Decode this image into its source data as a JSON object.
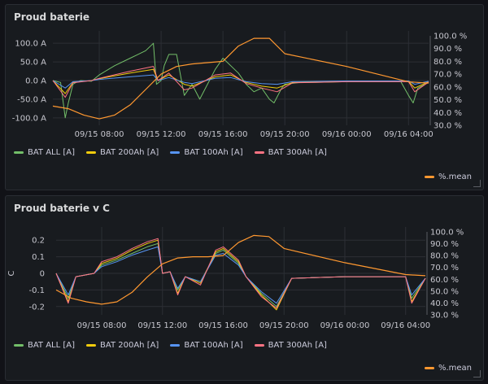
{
  "colors": {
    "bat_all": "#73bf69",
    "bat_200": "#f2cc0c",
    "bat_100": "#5794f2",
    "bat_300": "#ff7383",
    "mean": "#ff9830",
    "grid": "#2c2f35"
  },
  "panels": [
    {
      "title": "Proud baterie",
      "ylabel": "",
      "legend": [
        "BAT ALL [A]",
        "BAT 200Ah [A]",
        "BAT 100Ah [A]",
        "BAT 300Ah [A]"
      ],
      "mean_label": "%.mean"
    },
    {
      "title": "Proud baterie v C",
      "ylabel": "C",
      "legend": [
        "BAT ALL [A]",
        "BAT 200Ah [A]",
        "BAT 100Ah [A]",
        "BAT 300Ah [A]"
      ],
      "mean_label": "%.mean"
    }
  ],
  "chart_data": [
    {
      "type": "line",
      "title": "Proud baterie",
      "x_ticks": [
        "09/15 08:00",
        "09/15 12:00",
        "09/15 16:00",
        "09/15 20:00",
        "09/16 00:00",
        "09/16 04:00"
      ],
      "x_range_hours": [
        5.0,
        29.3
      ],
      "y_ticks": [
        "100.0 A",
        "50.0 A",
        "0.0 A",
        "-50.0 A",
        "-100.0 A"
      ],
      "ylim": [
        -120,
        120
      ],
      "y2_ticks": [
        "100.0 %",
        "90.0 %",
        "80.0 %",
        "70.0 %",
        "60.0 %",
        "50.0 %",
        "40.0 %",
        "30.0 %"
      ],
      "y2lim": [
        30,
        100
      ],
      "series": [
        {
          "name": "BAT ALL [A]",
          "x": [
            5.0,
            5.5,
            5.8,
            6.0,
            6.3,
            6.5,
            6.8,
            7.5,
            8.0,
            9.0,
            10.0,
            10.5,
            11.0,
            11.5,
            11.7,
            12.0,
            12.2,
            12.5,
            13.0,
            13.5,
            14.0,
            14.5,
            15.0,
            15.5,
            16.0,
            16.5,
            17.0,
            17.5,
            18.0,
            18.5,
            19.0,
            19.3,
            19.8,
            20.0,
            21.0,
            22.0,
            24.0,
            26.0,
            27.5,
            28.0,
            28.3,
            28.6,
            29.3
          ],
          "y": [
            0,
            -5,
            -100,
            -60,
            -10,
            -5,
            0,
            -2,
            15,
            40,
            60,
            70,
            80,
            100,
            -10,
            0,
            40,
            70,
            70,
            -40,
            -10,
            -50,
            -10,
            30,
            60,
            40,
            20,
            -10,
            -30,
            -20,
            -50,
            -60,
            -20,
            -10,
            -5,
            -5,
            -3,
            -3,
            -3,
            -40,
            -60,
            -20,
            -5
          ]
        },
        {
          "name": "BAT 200Ah [A]",
          "x": [
            5.0,
            5.8,
            6.3,
            7.5,
            8.0,
            10.0,
            11.5,
            11.8,
            12.5,
            13.5,
            14.0,
            15.5,
            16.5,
            17.5,
            18.5,
            19.5,
            20.5,
            24.0,
            28.0,
            28.4,
            29.3
          ],
          "y": [
            0,
            -35,
            -5,
            0,
            5,
            20,
            30,
            0,
            15,
            -10,
            -15,
            10,
            15,
            -5,
            -15,
            -20,
            -5,
            -2,
            -2,
            -20,
            -3
          ]
        },
        {
          "name": "BAT 100Ah [A]",
          "x": [
            5.0,
            5.8,
            6.3,
            7.5,
            8.0,
            10.0,
            11.5,
            11.8,
            12.5,
            13.5,
            14.0,
            15.5,
            16.5,
            17.5,
            18.5,
            19.5,
            20.5,
            24.0,
            28.0,
            28.4,
            29.3
          ],
          "y": [
            0,
            -20,
            -3,
            0,
            3,
            10,
            15,
            0,
            8,
            -5,
            -8,
            6,
            8,
            -3,
            -8,
            -10,
            -3,
            -1,
            -1,
            -10,
            -2
          ]
        },
        {
          "name": "BAT 300Ah [A]",
          "x": [
            5.0,
            5.8,
            6.3,
            7.5,
            8.0,
            10.0,
            11.5,
            11.8,
            12.5,
            13.5,
            14.0,
            15.5,
            16.5,
            17.5,
            18.5,
            19.5,
            20.5,
            24.0,
            28.0,
            28.4,
            29.3
          ],
          "y": [
            0,
            -45,
            -6,
            0,
            6,
            25,
            38,
            0,
            20,
            -25,
            -20,
            15,
            20,
            -8,
            -20,
            -30,
            -6,
            -3,
            -3,
            -30,
            -4
          ]
        },
        {
          "name": "%.mean",
          "axis": "right",
          "x": [
            5.0,
            6.0,
            7.0,
            8.0,
            9.0,
            10.0,
            11.0,
            12.0,
            13.0,
            14.0,
            15.0,
            16.0,
            17.0,
            18.0,
            19.0,
            20.0,
            24.0,
            28.0,
            29.3
          ],
          "y": [
            45,
            43,
            38,
            35,
            38,
            46,
            58,
            70,
            76,
            78,
            79,
            80,
            92,
            98,
            98,
            86,
            76,
            64,
            63
          ]
        }
      ]
    },
    {
      "type": "line",
      "title": "Proud baterie v C",
      "ylabel": "C",
      "x_ticks": [
        "09/15 08:00",
        "09/15 12:00",
        "09/15 16:00",
        "09/15 20:00",
        "09/16 00:00",
        "09/16 04:00"
      ],
      "x_range_hours": [
        5.0,
        29.3
      ],
      "y_ticks": [
        "0.2",
        "0.1",
        "0",
        "-0.1",
        "-0.2"
      ],
      "ylim": [
        -0.25,
        0.25
      ],
      "y2_ticks": [
        "100.0 %",
        "90.0 %",
        "80.0 %",
        "70.0 %",
        "60.0 %",
        "50.0 %",
        "40.0 %",
        "30.0 %"
      ],
      "y2lim": [
        30,
        100
      ],
      "series": [
        {
          "name": "BAT ALL [A]",
          "x": [
            5.0,
            5.8,
            6.3,
            7.5,
            8.0,
            9.0,
            10.0,
            11.0,
            11.7,
            12.0,
            12.5,
            13.0,
            13.5,
            14.5,
            15.5,
            16.0,
            17.0,
            17.5,
            18.5,
            19.5,
            20.5,
            24.0,
            28.0,
            28.4,
            29.3
          ],
          "y": [
            0,
            -0.15,
            -0.02,
            0,
            0.05,
            0.08,
            0.12,
            0.16,
            0.18,
            0,
            0.01,
            -0.1,
            -0.02,
            -0.05,
            0.12,
            0.14,
            0.06,
            -0.02,
            -0.12,
            -0.2,
            -0.03,
            -0.02,
            -0.02,
            -0.15,
            -0.03
          ]
        },
        {
          "name": "BAT 200Ah [A]",
          "x": [
            5.0,
            5.8,
            6.3,
            7.5,
            8.0,
            9.0,
            10.0,
            11.0,
            11.7,
            12.0,
            12.5,
            13.0,
            13.5,
            14.5,
            15.5,
            16.0,
            17.0,
            17.5,
            18.5,
            19.5,
            20.5,
            24.0,
            28.0,
            28.4,
            29.3
          ],
          "y": [
            0,
            -0.17,
            -0.02,
            0,
            0.06,
            0.09,
            0.14,
            0.18,
            0.2,
            0,
            0.01,
            -0.12,
            -0.02,
            -0.06,
            0.13,
            0.15,
            0.07,
            -0.02,
            -0.13,
            -0.22,
            -0.03,
            -0.02,
            -0.02,
            -0.17,
            -0.03
          ]
        },
        {
          "name": "BAT 100Ah [A]",
          "x": [
            5.0,
            5.8,
            6.3,
            7.5,
            8.0,
            9.0,
            10.0,
            11.0,
            11.7,
            12.0,
            12.5,
            13.0,
            13.5,
            14.5,
            15.5,
            16.0,
            17.0,
            17.5,
            18.5,
            19.5,
            20.5,
            24.0,
            28.0,
            28.4,
            29.3
          ],
          "y": [
            0,
            -0.13,
            -0.02,
            0,
            0.04,
            0.07,
            0.11,
            0.14,
            0.16,
            0,
            0.01,
            -0.09,
            -0.02,
            -0.05,
            0.11,
            0.12,
            0.05,
            -0.02,
            -0.11,
            -0.18,
            -0.03,
            -0.02,
            -0.02,
            -0.13,
            -0.03
          ]
        },
        {
          "name": "BAT 300Ah [A]",
          "x": [
            5.0,
            5.8,
            6.3,
            7.5,
            8.0,
            9.0,
            10.0,
            11.0,
            11.7,
            12.0,
            12.5,
            13.0,
            13.5,
            14.5,
            15.5,
            16.0,
            17.0,
            17.5,
            18.5,
            19.5,
            20.5,
            24.0,
            28.0,
            28.4,
            29.3
          ],
          "y": [
            0,
            -0.18,
            -0.02,
            0,
            0.07,
            0.1,
            0.15,
            0.19,
            0.21,
            0,
            0.01,
            -0.13,
            -0.02,
            -0.07,
            0.14,
            0.16,
            0.08,
            -0.02,
            -0.14,
            -0.21,
            -0.03,
            -0.02,
            -0.02,
            -0.18,
            -0.03
          ]
        },
        {
          "name": "%.mean",
          "axis": "right",
          "x": [
            5.0,
            6.0,
            7.0,
            8.0,
            9.0,
            10.0,
            11.0,
            12.0,
            13.0,
            14.0,
            15.0,
            16.0,
            17.0,
            18.0,
            19.0,
            20.0,
            24.0,
            28.0,
            29.3
          ],
          "y": [
            51,
            44,
            41,
            39,
            41,
            49,
            62,
            73,
            78,
            79,
            79,
            80,
            91,
            97,
            96,
            86,
            74,
            64,
            63
          ]
        }
      ]
    }
  ]
}
